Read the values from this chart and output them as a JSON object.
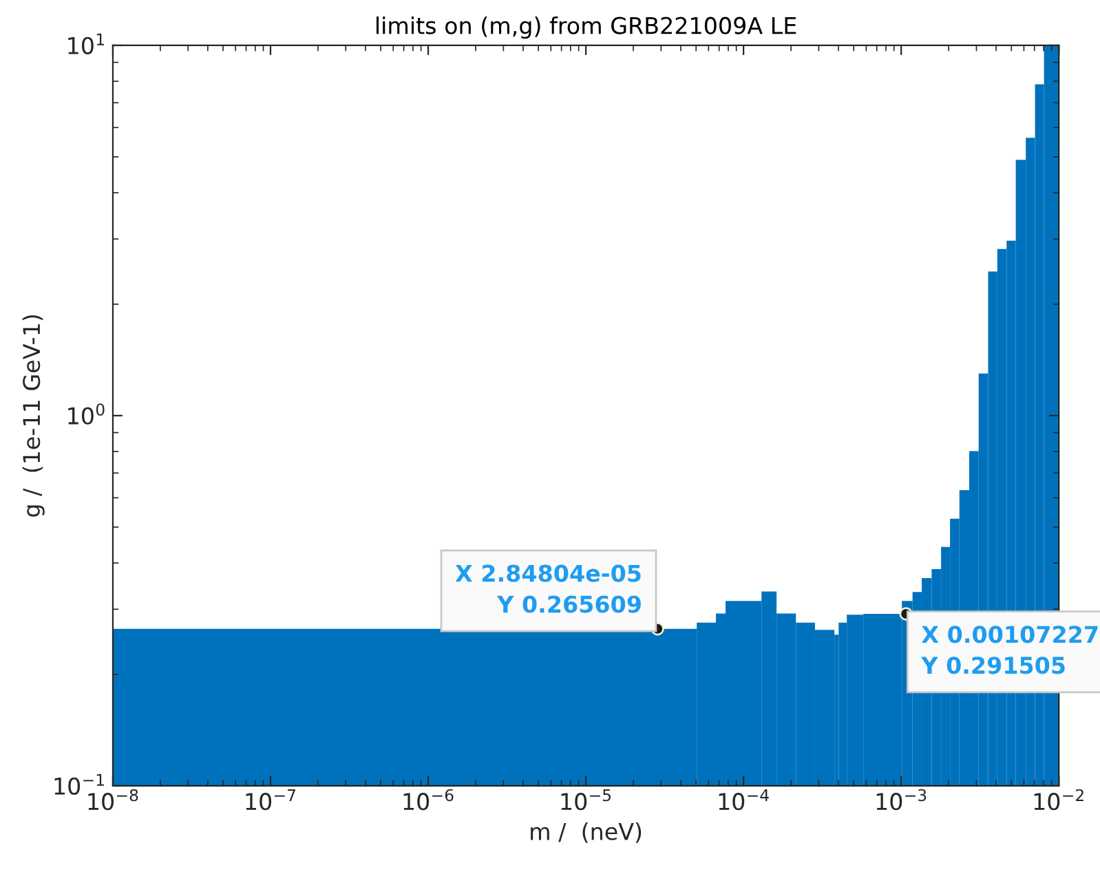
{
  "chart_data": {
    "type": "histogram",
    "title": "limits on (m,g) from GRB221009A LE",
    "xlabel": "m /  (neV)",
    "ylabel": "g /  (1e-11 GeV-1)",
    "color": "#0072bd",
    "bins": [
      1e-08,
      5.05e-05,
      6.68e-05,
      7.69e-05,
      0.00013,
      0.000162,
      0.000215,
      0.000284,
      0.000377,
      0.000401,
      0.000452,
      0.000575,
      0.00101,
      0.00118,
      0.00135,
      0.00156,
      0.00179,
      0.00204,
      0.00234,
      0.0027,
      0.0031,
      0.00356,
      0.00407,
      0.00466,
      0.00533,
      0.00617,
      0.00706,
      0.00805,
      0.01
    ],
    "values": [
      0.2656,
      0.276,
      0.292,
      0.316,
      0.335,
      0.292,
      0.276,
      0.264,
      0.256,
      0.276,
      0.29,
      0.2915,
      0.316,
      0.334,
      0.364,
      0.385,
      0.442,
      0.527,
      0.629,
      0.802,
      1.3,
      2.45,
      2.82,
      2.97,
      4.91,
      5.63,
      7.85,
      10
    ],
    "log": "xy",
    "xlim": [
      1e-08,
      0.01
    ],
    "ylim": [
      0.1,
      10
    ],
    "xticks": [
      {
        "value": 1e-08,
        "label": "10$^{−8}$"
      },
      {
        "value": 1e-07,
        "label": "10$^{−7}$"
      },
      {
        "value": 1e-06,
        "label": "10$^{−6}$"
      },
      {
        "value": 1e-05,
        "label": "10$^{−5}$"
      },
      {
        "value": 0.0001,
        "label": "10$^{−4}$"
      },
      {
        "value": 0.001,
        "label": "10$^{−3}$"
      },
      {
        "value": 0.01,
        "label": "10$^{−2}$"
      }
    ],
    "yticks": [
      {
        "value": 0.1,
        "label": "10$^{−1}$"
      },
      {
        "value": 1,
        "label": "10$^{0}$"
      },
      {
        "value": 10,
        "label": "10$^{1}$"
      }
    ],
    "grid": false,
    "annotations": [
      {
        "text": "X 2.84804e-05\nY 0.265609",
        "x": 2.84804e-05,
        "y": 0.265609
      },
      {
        "text": "X 0.00107227\nY 0.291505",
        "x": 0.00107227,
        "y": 0.291505
      }
    ]
  }
}
